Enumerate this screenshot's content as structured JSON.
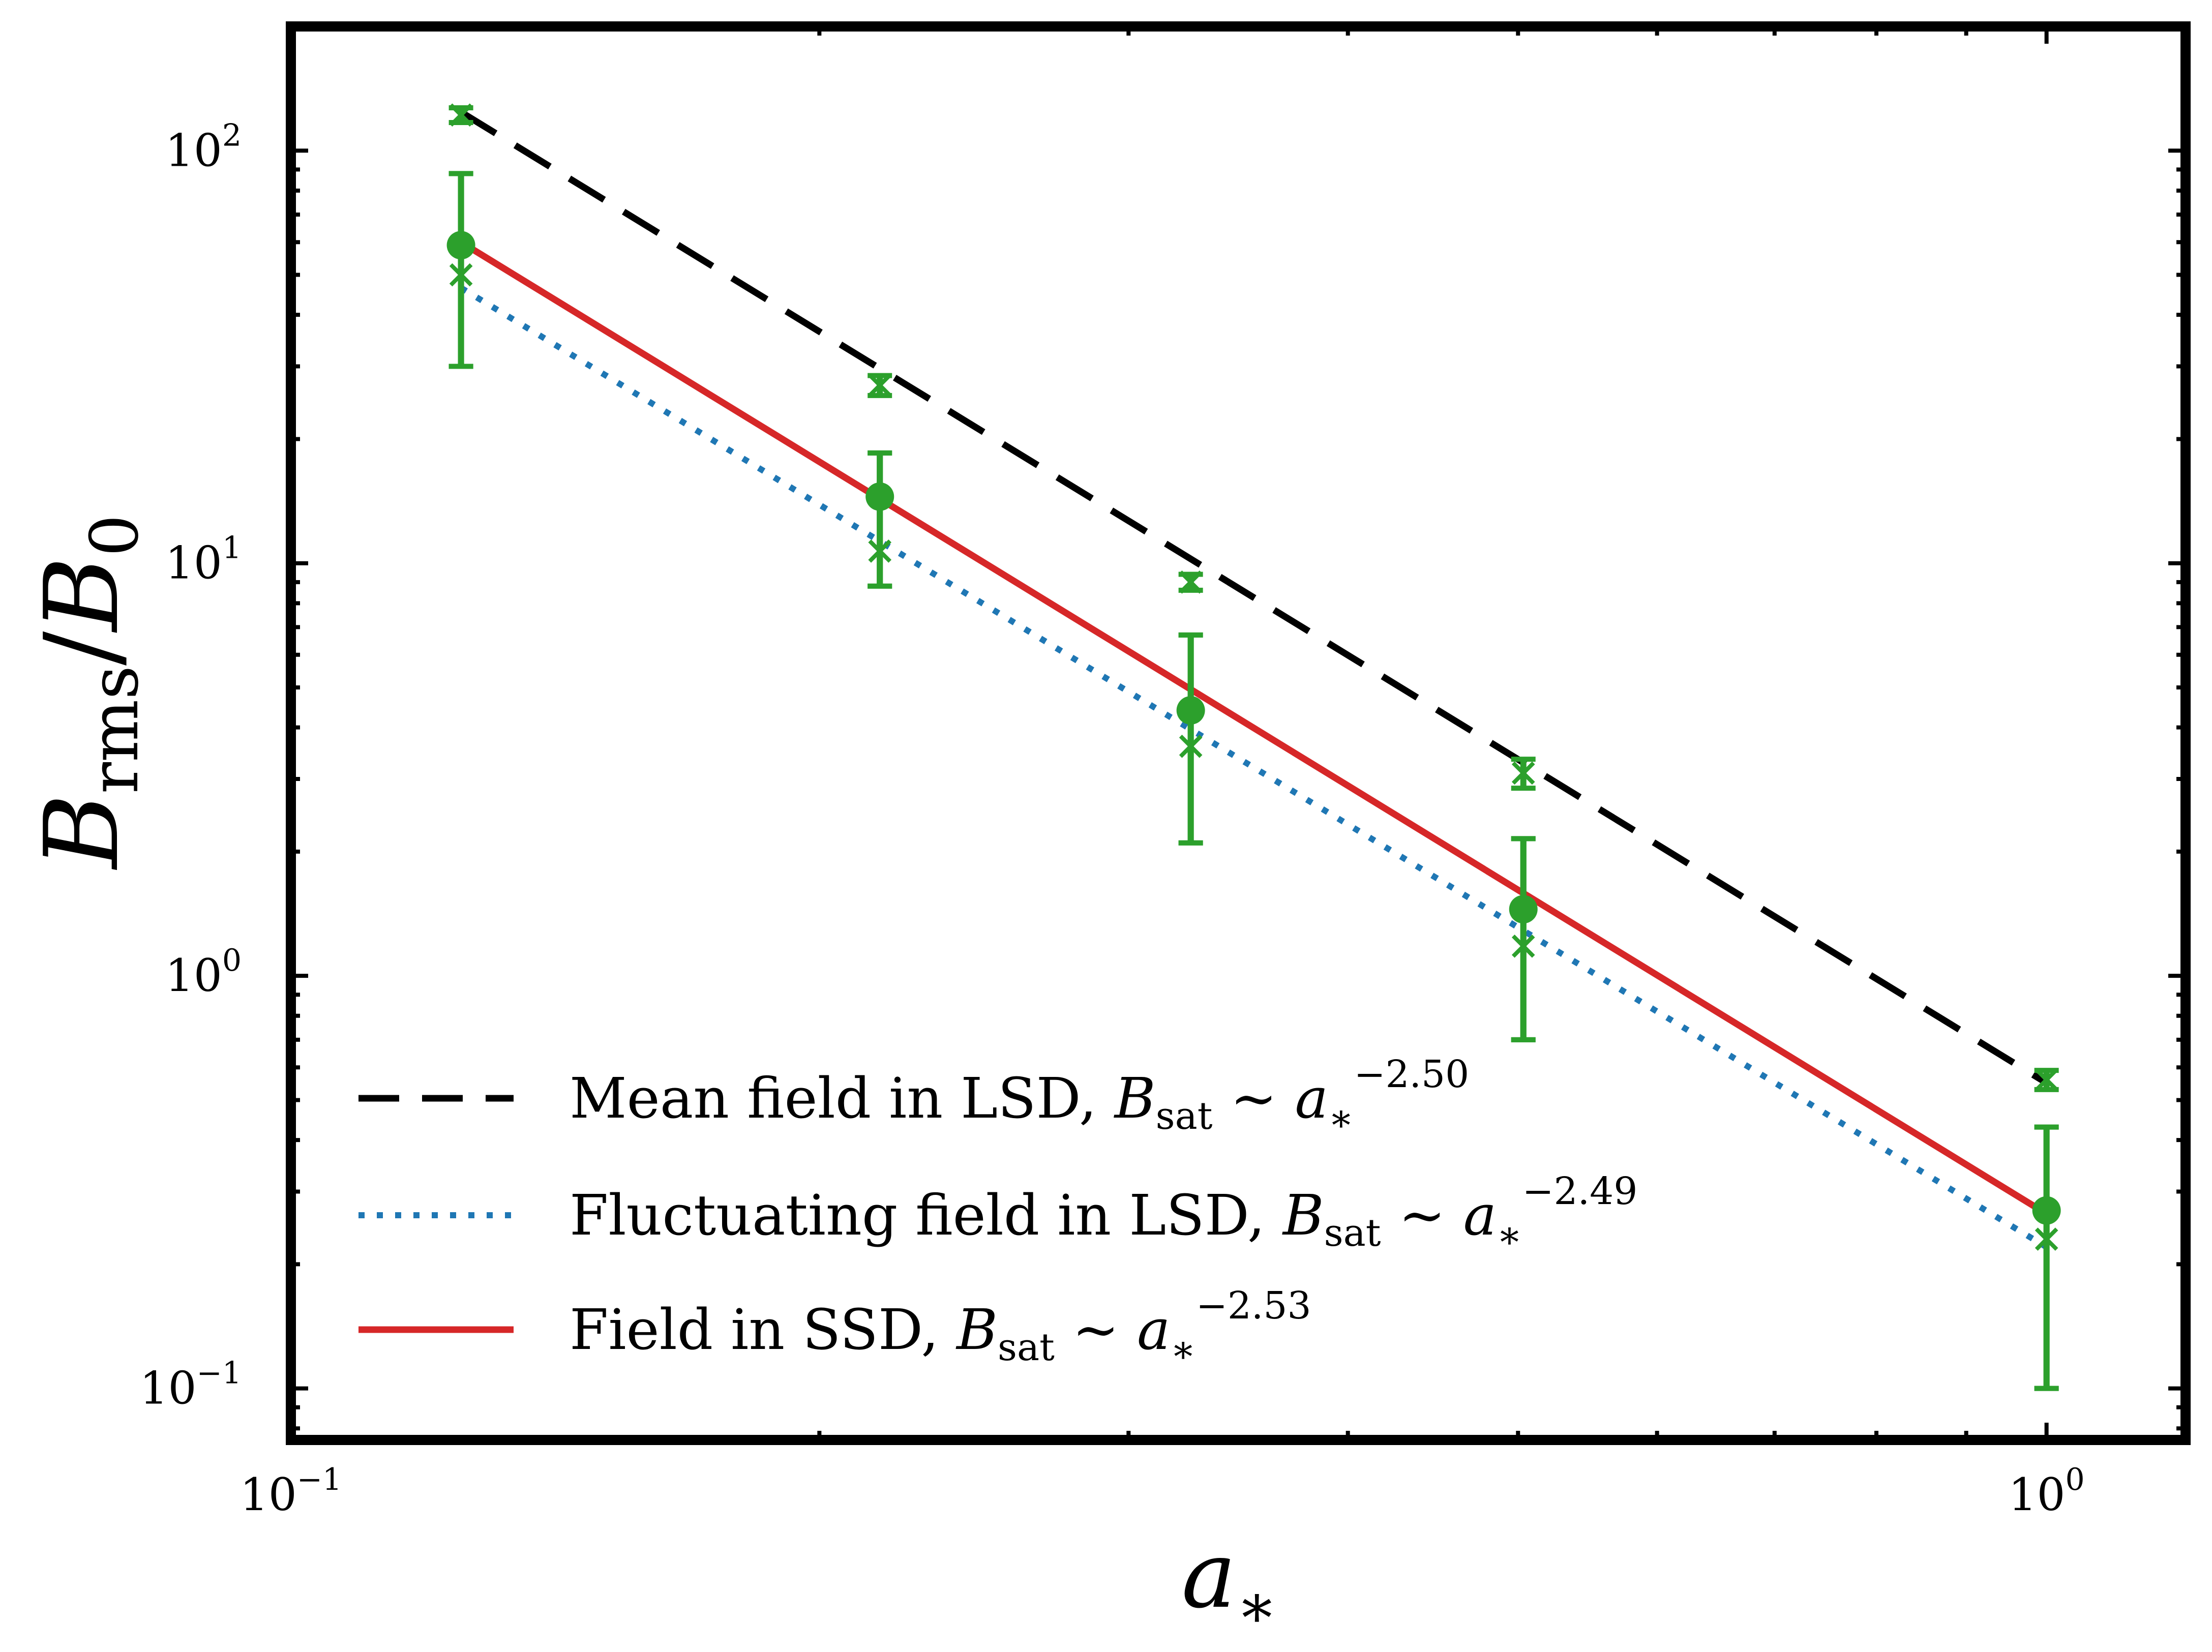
{
  "chart_data": {
    "type": "line",
    "title": "",
    "xlabel": "a*",
    "ylabel": "Brms/B0",
    "xscale": "log",
    "yscale": "log",
    "xlim": [
      0.1,
      1.2
    ],
    "ylim": [
      0.075,
      200
    ],
    "grid": false,
    "legend_position": "lower-left",
    "x_ticks": [
      {
        "value": 0.1,
        "base": "10",
        "exp": "−1"
      },
      {
        "value": 1,
        "base": "10",
        "exp": "0"
      }
    ],
    "y_ticks": [
      {
        "value": 0.1,
        "base": "10",
        "exp": "−1"
      },
      {
        "value": 1,
        "base": "10",
        "exp": "0"
      },
      {
        "value": 10,
        "base": "10",
        "exp": "1"
      },
      {
        "value": 100,
        "base": "10",
        "exp": "2"
      }
    ],
    "series": [
      {
        "name": "Mean field in LSD, Bsat ~ a*^-2.50",
        "legend": {
          "prefix": "Mean field in LSD, ",
          "exp": "−2.50"
        },
        "style": "dashed",
        "color": "#000000",
        "fit_exponent": -2.5,
        "fit_x": [
          0.125,
          1.0
        ],
        "fit_y": [
          124.0,
          0.55
        ],
        "x": [
          0.125,
          0.2165,
          0.3255,
          0.5035,
          1.0
        ],
        "y": [
          122.0,
          27.0,
          9.0,
          3.1,
          0.56
        ],
        "yerr_low": [
          117.0,
          25.5,
          8.6,
          2.85,
          0.53
        ],
        "yerr_high": [
          127.0,
          28.5,
          9.4,
          3.35,
          0.59
        ],
        "marker": "x"
      },
      {
        "name": "Fluctuating field in LSD, Bsat ~ a*^-2.49",
        "legend": {
          "prefix": "Fluctuating field in LSD, ",
          "exp": "−2.49"
        },
        "style": "dotted",
        "color": "#1f77b4",
        "fit_exponent": -2.49,
        "fit_x": [
          0.125,
          1.0
        ],
        "fit_y": [
          46.5,
          0.22
        ],
        "x": [
          0.125,
          0.2165,
          0.3255,
          0.5035,
          1.0
        ],
        "y": [
          50.0,
          10.7,
          3.6,
          1.18,
          0.23
        ],
        "yerr_low": [
          30.0,
          8.8,
          2.1,
          0.7,
          0.1
        ],
        "yerr_high": [
          88.0,
          18.5,
          6.7,
          2.15,
          0.43
        ],
        "marker": "x"
      },
      {
        "name": "Field in SSD, Bsat ~ a*^-2.53",
        "legend": {
          "prefix": "Field in SSD, ",
          "exp": "−2.53"
        },
        "style": "solid",
        "color": "#d62728",
        "fit_exponent": -2.53,
        "fit_x": [
          0.125,
          1.0
        ],
        "fit_y": [
          60.0,
          0.265
        ],
        "x": [
          0.125,
          0.2165,
          0.3255,
          0.5035,
          1.0
        ],
        "y": [
          59.0,
          14.5,
          4.4,
          1.45,
          0.27
        ],
        "yerr_low": [
          30.0,
          8.8,
          2.1,
          0.7,
          0.1
        ],
        "yerr_high": [
          88.0,
          18.5,
          6.7,
          2.15,
          0.43
        ],
        "marker": "o"
      }
    ],
    "data_marker_color": "#2ca02c"
  }
}
